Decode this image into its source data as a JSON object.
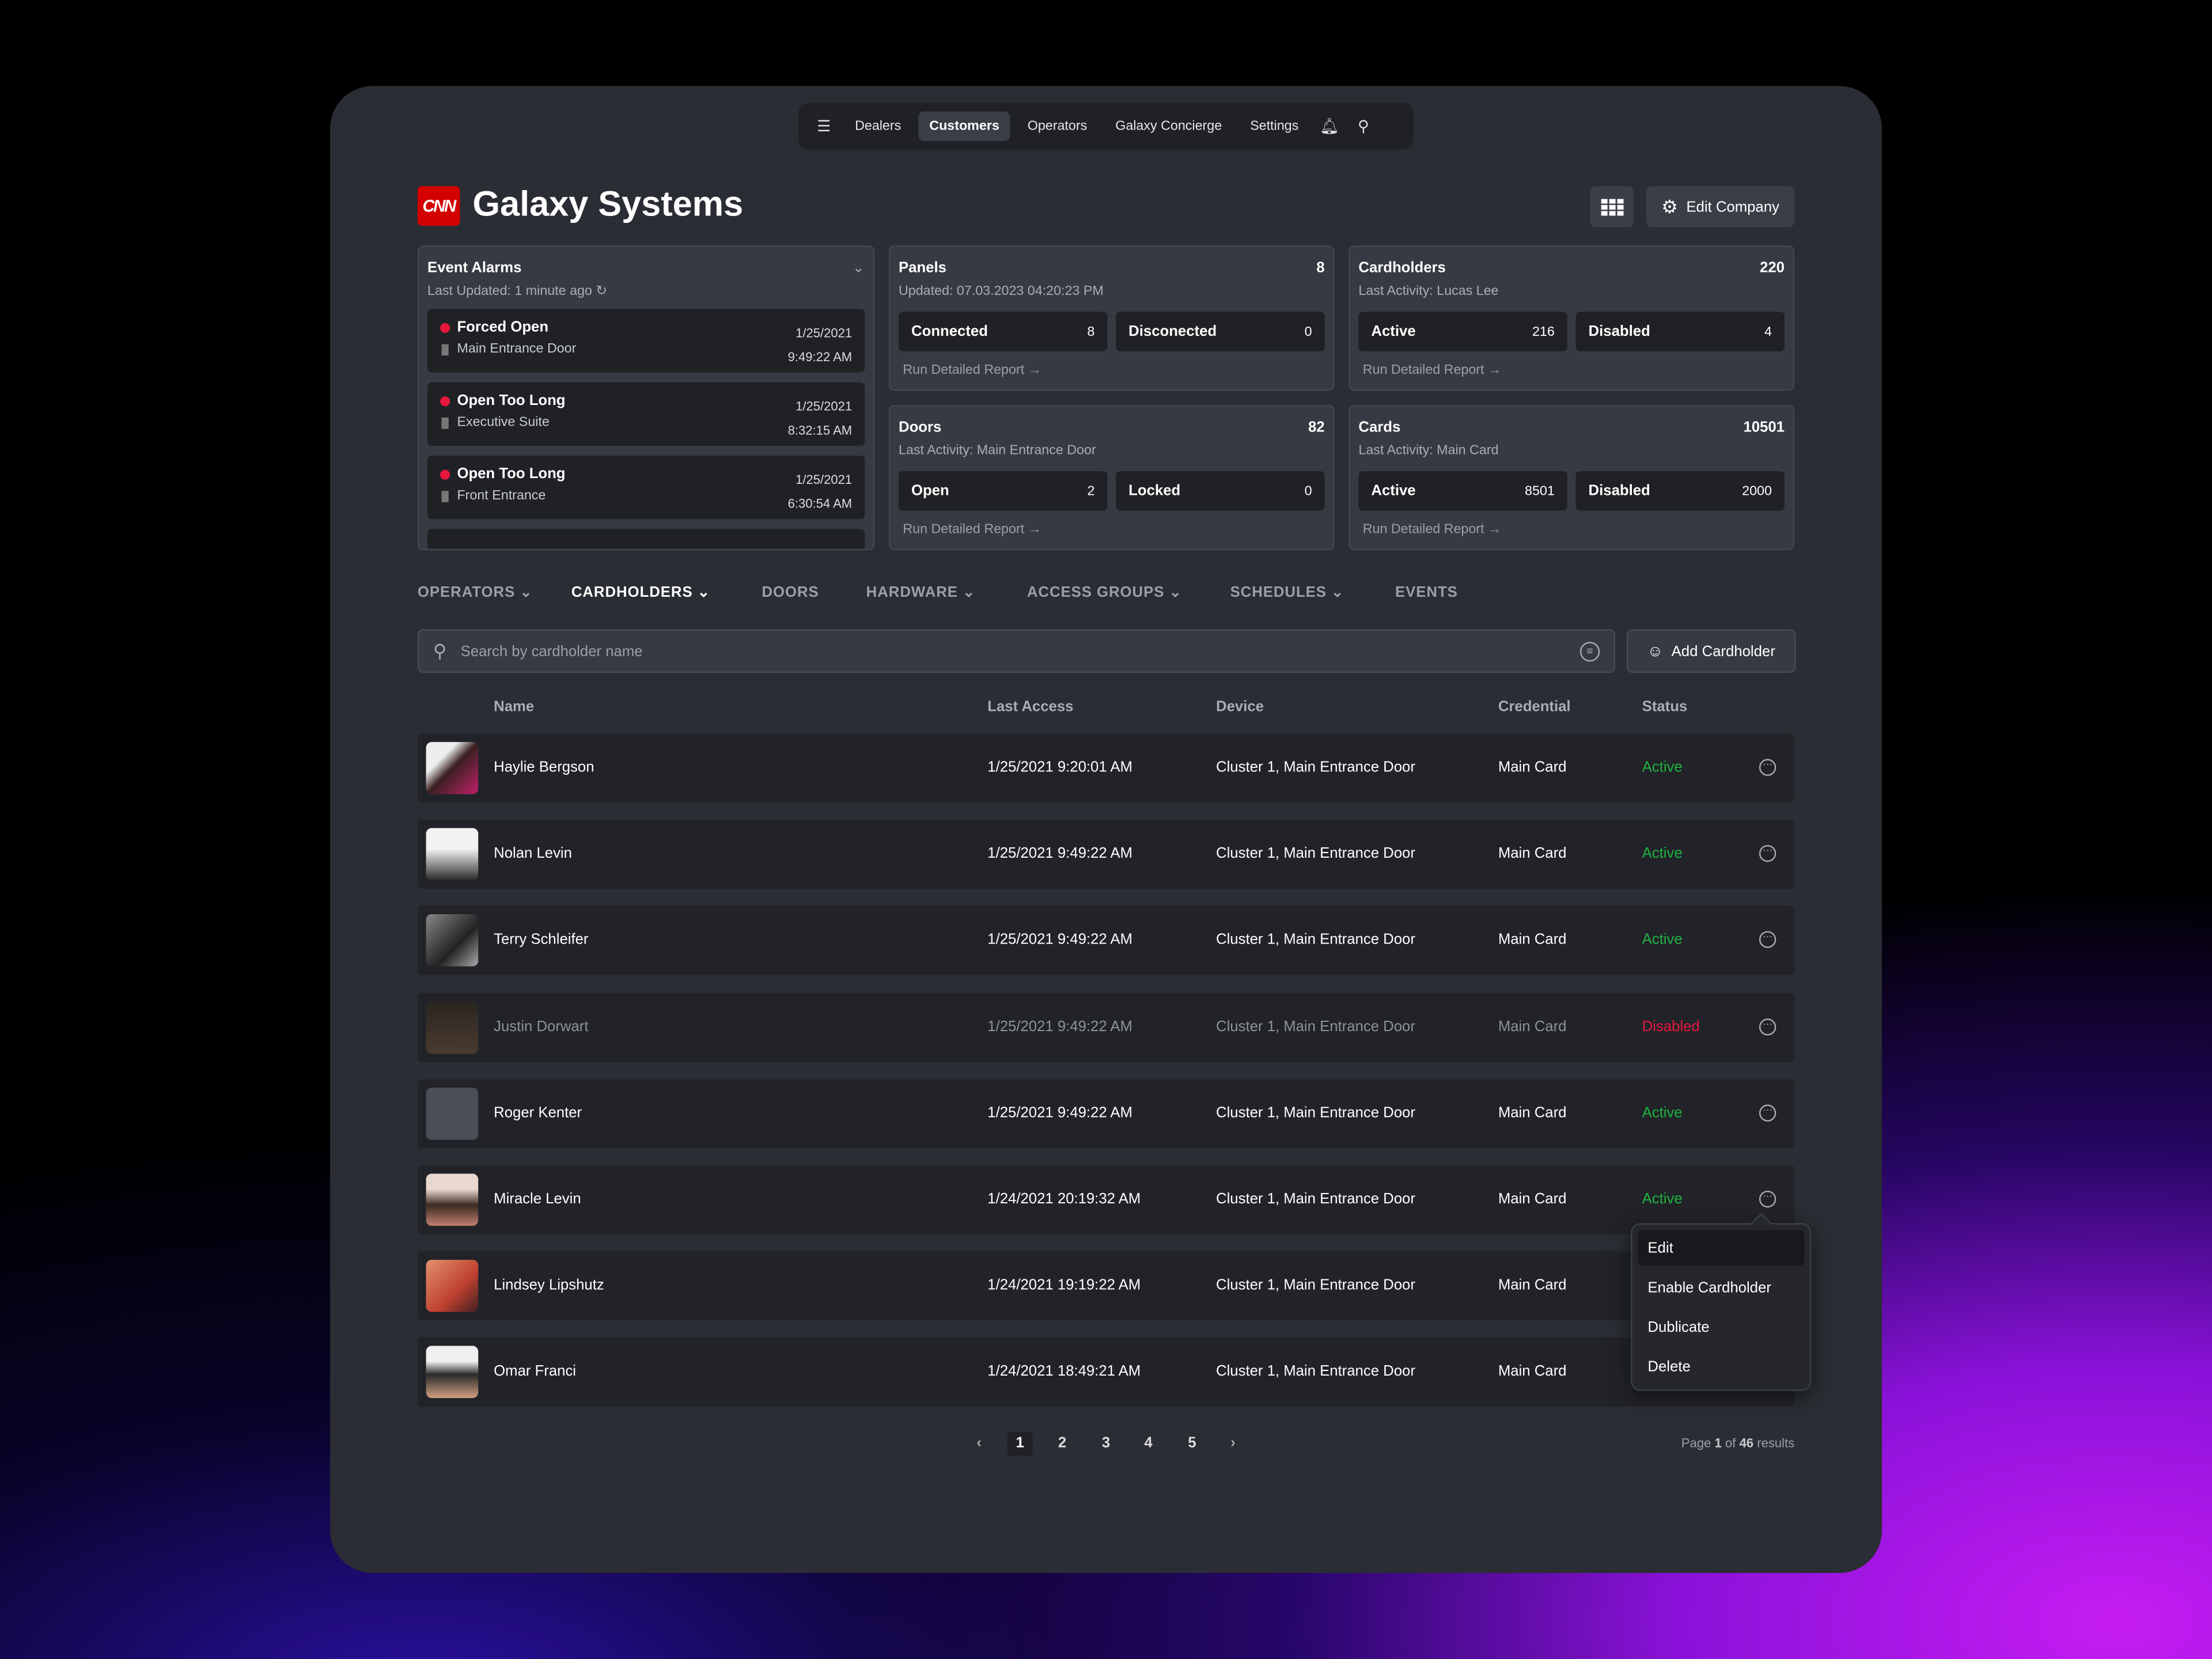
{
  "nav": {
    "items": [
      "Dealers",
      "Customers",
      "Operators",
      "Galaxy Concierge",
      "Settings"
    ],
    "active": "Customers",
    "icons": [
      "menu-icon",
      "bell-icon",
      "search-icon"
    ]
  },
  "company": {
    "logo_text": "CNN",
    "name": "Galaxy Systems",
    "edit_label": "Edit Company"
  },
  "alarms": {
    "title": "Event Alarms",
    "updated": "Last Updated: 1 minute ago",
    "items": [
      {
        "type": "Forced Open",
        "location": "Main Entrance Door",
        "date": "1/25/2021",
        "time": "9:49:22 AM"
      },
      {
        "type": "Open Too Long",
        "location": "Executive Suite",
        "date": "1/25/2021",
        "time": "8:32:15 AM"
      },
      {
        "type": "Open Too Long",
        "location": "Front Entrance",
        "date": "1/25/2021",
        "time": "6:30:54 AM"
      }
    ]
  },
  "cards": {
    "panels": {
      "title": "Panels",
      "total": "8",
      "sub": "Updated: 07.03.2023 04:20:23 PM",
      "stats": [
        {
          "label": "Connected",
          "value": "8"
        },
        {
          "label": "Disconected",
          "value": "0"
        }
      ],
      "report": "Run Detailed Report →"
    },
    "cardholders": {
      "title": "Cardholders",
      "total": "220",
      "sub": "Last Activity: Lucas Lee",
      "stats": [
        {
          "label": "Active",
          "value": "216"
        },
        {
          "label": "Disabled",
          "value": "4"
        }
      ],
      "report": "Run Detailed Report →"
    },
    "doors": {
      "title": "Doors",
      "total": "82",
      "sub": "Last Activity: Main Entrance Door",
      "stats": [
        {
          "label": "Open",
          "value": "2"
        },
        {
          "label": "Locked",
          "value": "0"
        }
      ],
      "report": "Run Detailed Report →"
    },
    "cards": {
      "title": "Cards",
      "total": "10501",
      "sub": "Last Activity: Main Card",
      "stats": [
        {
          "label": "Active",
          "value": "8501"
        },
        {
          "label": "Disabled",
          "value": "2000"
        }
      ],
      "report": "Run Detailed Report →"
    }
  },
  "tabs": [
    {
      "label": "OPERATORS ⌄"
    },
    {
      "label": "CARDHOLDERS ⌄"
    },
    {
      "label": "DOORS"
    },
    {
      "label": "HARDWARE ⌄"
    },
    {
      "label": "ACCESS GROUPS ⌄"
    },
    {
      "label": "SCHEDULES ⌄"
    },
    {
      "label": "EVENTS"
    }
  ],
  "active_tab": "CARDHOLDERS",
  "search": {
    "placeholder": "Search by cardholder name",
    "value": ""
  },
  "add_label": "Add Cardholder",
  "table": {
    "headers": [
      "Name",
      "Last Access",
      "Device",
      "Credential",
      "Status"
    ],
    "rows": [
      {
        "name": "Haylie Bergson",
        "last_access": "1/25/2021 9:20:01 AM",
        "device": "Cluster 1, Main Entrance Door",
        "credential": "Main Card",
        "status": "Active"
      },
      {
        "name": "Nolan Levin",
        "last_access": "1/25/2021 9:49:22 AM",
        "device": "Cluster 1, Main Entrance Door",
        "credential": "Main Card",
        "status": "Active"
      },
      {
        "name": "Terry Schleifer",
        "last_access": "1/25/2021 9:49:22 AM",
        "device": "Cluster 1, Main Entrance Door",
        "credential": "Main Card",
        "status": "Active"
      },
      {
        "name": "Justin Dorwart",
        "last_access": "1/25/2021 9:49:22 AM",
        "device": "Cluster 1, Main Entrance Door",
        "credential": "Main Card",
        "status": "Disabled"
      },
      {
        "name": "Roger Kenter",
        "last_access": "1/25/2021 9:49:22 AM",
        "device": "Cluster 1, Main Entrance Door",
        "credential": "Main Card",
        "status": "Active"
      },
      {
        "name": "Miracle Levin",
        "last_access": "1/24/2021 20:19:32 AM",
        "device": "Cluster 1, Main Entrance Door",
        "credential": "Main Card",
        "status": "Active"
      },
      {
        "name": "Lindsey Lipshutz",
        "last_access": "1/24/2021 19:19:22 AM",
        "device": "Cluster 1, Main Entrance Door",
        "credential": "Main Card",
        "status": ""
      },
      {
        "name": "Omar Franci",
        "last_access": "1/24/2021 18:49:21 AM",
        "device": "Cluster 1, Main Entrance Door",
        "credential": "Main Card",
        "status": ""
      }
    ]
  },
  "row_menu": {
    "items": [
      "Edit",
      "Enable Cardholder",
      "Dublicate",
      "Delete"
    ]
  },
  "pagination": {
    "pages": [
      "1",
      "2",
      "3",
      "4",
      "5"
    ],
    "current": "1",
    "prefix": "Page",
    "page": "1",
    "of": "of",
    "total": "46",
    "suffix": "results"
  },
  "colors": {
    "active": "#1fb340",
    "disabled": "#e8173e",
    "accent_red": "#d40000"
  }
}
